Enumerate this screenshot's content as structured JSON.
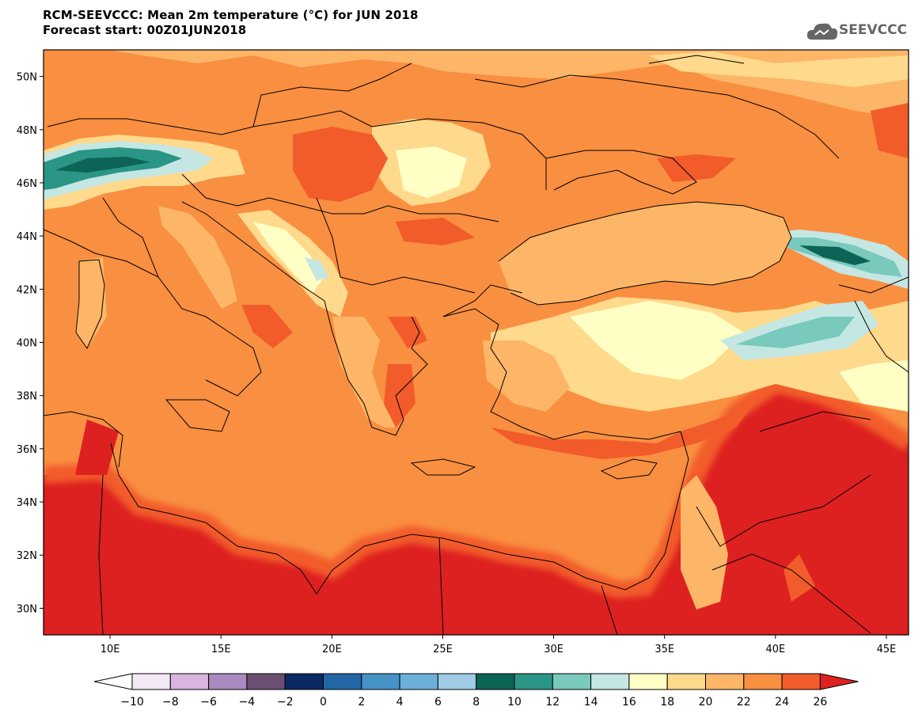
{
  "header": {
    "title": "RCM-SEEVCCC: Mean 2m temperature (°C) for JUN 2018",
    "subtitle": "Forecast start: 00Z01JUN2018"
  },
  "logo": {
    "text": "SEEVCCC",
    "icon": "cloud-icon"
  },
  "map": {
    "lon_range": [
      7,
      46
    ],
    "lat_range": [
      29,
      51
    ],
    "lon_ticks": [
      {
        "value": 10,
        "label": "10E"
      },
      {
        "value": 15,
        "label": "15E"
      },
      {
        "value": 20,
        "label": "20E"
      },
      {
        "value": 25,
        "label": "25E"
      },
      {
        "value": 30,
        "label": "30E"
      },
      {
        "value": 35,
        "label": "35E"
      },
      {
        "value": 40,
        "label": "40E"
      },
      {
        "value": 45,
        "label": "45E"
      }
    ],
    "lat_ticks": [
      {
        "value": 50,
        "label": "50N"
      },
      {
        "value": 48,
        "label": "48N"
      },
      {
        "value": 46,
        "label": "46N"
      },
      {
        "value": 44,
        "label": "44N"
      },
      {
        "value": 42,
        "label": "42N"
      },
      {
        "value": 40,
        "label": "40N"
      },
      {
        "value": 38,
        "label": "38N"
      },
      {
        "value": 36,
        "label": "36N"
      },
      {
        "value": 34,
        "label": "34N"
      },
      {
        "value": 32,
        "label": "32N"
      },
      {
        "value": 30,
        "label": "30N"
      }
    ]
  },
  "colorbar": {
    "labels": [
      "−10",
      "−8",
      "−6",
      "−4",
      "−2",
      "0",
      "2",
      "4",
      "6",
      "8",
      "10",
      "12",
      "14",
      "16",
      "18",
      "20",
      "22",
      "24",
      "26"
    ],
    "under_color": "#ffffff",
    "colors": [
      "#f2e9f5",
      "#d8b6e0",
      "#a98bc0",
      "#6a4f73",
      "#0a2a66",
      "#2366a6",
      "#4592c6",
      "#6cb0d9",
      "#9fcbe6",
      "#0b6456",
      "#2b9586",
      "#79c9bd",
      "#c5e7e3",
      "#ffffc5",
      "#ffd98c",
      "#fdb667",
      "#f98f41",
      "#f25b2a"
    ],
    "over_color": "#dd2020"
  },
  "colors": {
    "c22": "#fdb667",
    "c24": "#f98f41",
    "c26": "#f25b2a",
    "c26p": "#dd2020",
    "c20": "#ffd98c",
    "c18": "#ffffc5",
    "c16": "#c5e7e3",
    "c14": "#79c9bd",
    "c12": "#2b9586",
    "c10": "#0b6456"
  }
}
